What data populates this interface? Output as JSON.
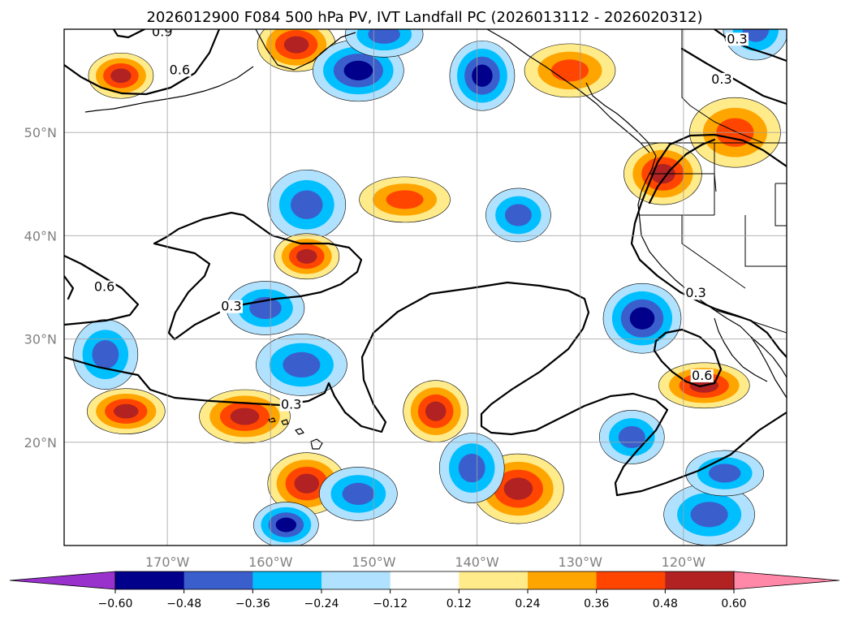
{
  "chart_data": {
    "type": "contour-map",
    "title": "2026012900 F084 500 hPa PV, IVT Landfall PC (2026013112 - 2026020312)",
    "map_extent": {
      "lon_range": [
        -180,
        -110
      ],
      "lat_range": [
        10,
        60
      ]
    },
    "grid": true,
    "lon_ticks": [
      {
        "value": -170,
        "label": "170°W"
      },
      {
        "value": -160,
        "label": "160°W"
      },
      {
        "value": -150,
        "label": "150°W"
      },
      {
        "value": -140,
        "label": "140°W"
      },
      {
        "value": -130,
        "label": "130°W"
      },
      {
        "value": -120,
        "label": "120°W"
      }
    ],
    "lat_ticks": [
      {
        "value": 20,
        "label": "20°N"
      },
      {
        "value": 30,
        "label": "30°N"
      },
      {
        "value": 40,
        "label": "40°N"
      },
      {
        "value": 50,
        "label": "50°N"
      }
    ],
    "colorbar": {
      "orientation": "horizontal",
      "extend": "both",
      "bounds": [
        -0.6,
        -0.48,
        -0.36,
        -0.24,
        -0.12,
        0.12,
        0.24,
        0.36,
        0.48,
        0.6
      ],
      "tick_labels": [
        "−0.60",
        "−0.48",
        "−0.36",
        "−0.24",
        "−0.12",
        "0.12",
        "0.24",
        "0.36",
        "0.48",
        "0.60"
      ],
      "colors": [
        "#9932cc",
        "#00008b",
        "#3a5fcd",
        "#00bfff",
        "#b0e2ff",
        "#ffffff",
        "#ffeb8a",
        "#ffa500",
        "#ff4500",
        "#b22222",
        "#ff88a8"
      ]
    },
    "contour_labels": [
      {
        "text": "0.9",
        "lon": -170.5,
        "lat": 59.5
      },
      {
        "text": "0.6",
        "lon": -168.8,
        "lat": 55.8
      },
      {
        "text": "0.6",
        "lon": -176.1,
        "lat": 34.8
      },
      {
        "text": "0.3",
        "lon": -163.8,
        "lat": 32.9
      },
      {
        "text": "0.3",
        "lon": -158.0,
        "lat": 23.4
      },
      {
        "text": "0.3",
        "lon": -114.8,
        "lat": 58.8
      },
      {
        "text": "0.3",
        "lon": -116.3,
        "lat": 54.9
      },
      {
        "text": "0.3",
        "lon": -118.8,
        "lat": 34.2
      },
      {
        "text": "0.6",
        "lon": -118.2,
        "lat": 26.2
      }
    ],
    "pv_anomaly_features": [
      {
        "lon": -174.5,
        "lat": 55.5,
        "max": 0.48,
        "sign": "positive"
      },
      {
        "lon": -157.5,
        "lat": 58.5,
        "max": 0.48,
        "sign": "positive"
      },
      {
        "lon": -151.5,
        "lat": 56.0,
        "min": -0.48,
        "sign": "negative"
      },
      {
        "lon": -139.5,
        "lat": 55.5,
        "min": -0.48,
        "sign": "negative"
      },
      {
        "lon": -149.0,
        "lat": 59.5,
        "min": -0.36,
        "sign": "negative"
      },
      {
        "lon": -131.0,
        "lat": 56.0,
        "max": 0.36,
        "sign": "positive"
      },
      {
        "lon": -113.0,
        "lat": 60.0,
        "min": -0.36,
        "sign": "negative"
      },
      {
        "lon": -156.5,
        "lat": 43.0,
        "min": -0.36,
        "sign": "negative"
      },
      {
        "lon": -147.0,
        "lat": 43.5,
        "max": 0.36,
        "sign": "positive"
      },
      {
        "lon": -136.0,
        "lat": 42.0,
        "min": -0.36,
        "sign": "negative"
      },
      {
        "lon": -122.0,
        "lat": 46.0,
        "max": 0.48,
        "sign": "positive"
      },
      {
        "lon": -115.0,
        "lat": 50.0,
        "max": 0.36,
        "sign": "positive"
      },
      {
        "lon": -156.5,
        "lat": 38.0,
        "max": 0.48,
        "sign": "positive"
      },
      {
        "lon": -160.5,
        "lat": 33.0,
        "min": -0.36,
        "sign": "negative"
      },
      {
        "lon": -157.0,
        "lat": 27.5,
        "min": -0.36,
        "sign": "negative"
      },
      {
        "lon": -176.0,
        "lat": 28.5,
        "min": -0.36,
        "sign": "negative"
      },
      {
        "lon": -174.0,
        "lat": 23.0,
        "max": 0.48,
        "sign": "positive"
      },
      {
        "lon": -162.5,
        "lat": 22.5,
        "max": 0.48,
        "sign": "positive"
      },
      {
        "lon": -144.0,
        "lat": 23.0,
        "max": 0.48,
        "sign": "positive"
      },
      {
        "lon": -124.0,
        "lat": 32.0,
        "min": -0.48,
        "sign": "negative"
      },
      {
        "lon": -118.0,
        "lat": 25.5,
        "max": 0.48,
        "sign": "positive"
      },
      {
        "lon": -125.0,
        "lat": 20.5,
        "min": -0.36,
        "sign": "negative"
      },
      {
        "lon": -156.5,
        "lat": 16.0,
        "max": 0.48,
        "sign": "positive"
      },
      {
        "lon": -136.0,
        "lat": 15.5,
        "max": 0.48,
        "sign": "positive"
      },
      {
        "lon": -158.5,
        "lat": 12.0,
        "min": -0.48,
        "sign": "negative"
      },
      {
        "lon": -151.5,
        "lat": 15.0,
        "min": -0.36,
        "sign": "negative"
      },
      {
        "lon": -117.5,
        "lat": 13.0,
        "min": -0.36,
        "sign": "negative"
      },
      {
        "lon": -140.5,
        "lat": 17.5,
        "min": -0.36,
        "sign": "negative"
      },
      {
        "lon": -116.0,
        "lat": 17.0,
        "min": -0.36,
        "sign": "negative"
      }
    ]
  }
}
